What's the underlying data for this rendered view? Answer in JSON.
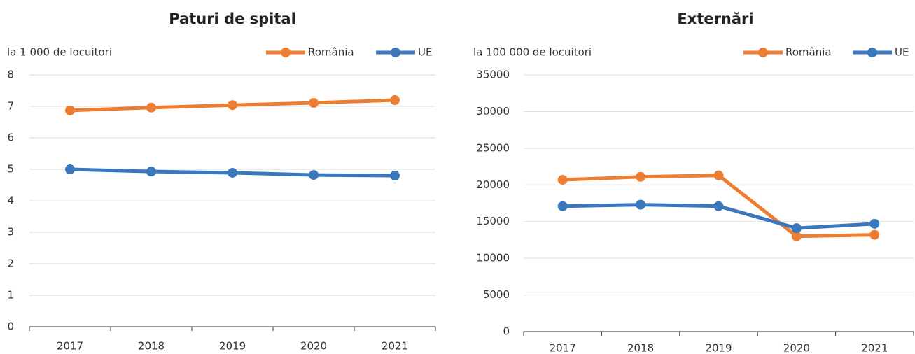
{
  "chart_data": [
    {
      "type": "line",
      "title": "Paturi de spital",
      "y_label": "la 1 000 de locuitori",
      "categories": [
        "2017",
        "2018",
        "2019",
        "2020",
        "2021"
      ],
      "series": [
        {
          "name": "România",
          "color": "#ed7d31",
          "values": [
            6.87,
            6.96,
            7.04,
            7.11,
            7.2
          ]
        },
        {
          "name": "UE",
          "color": "#3a77bd",
          "values": [
            5.0,
            4.93,
            4.89,
            4.82,
            4.8
          ]
        }
      ],
      "ylim": [
        0,
        8
      ],
      "yticks": [
        0,
        1,
        2,
        3,
        4,
        5,
        6,
        7,
        8
      ],
      "grid": true,
      "legend": "top-right"
    },
    {
      "type": "line",
      "title": "Externări",
      "y_label": "la 100 000 de locuitori",
      "categories": [
        "2017",
        "2018",
        "2019",
        "2020",
        "2021"
      ],
      "series": [
        {
          "name": "România",
          "color": "#ed7d31",
          "values": [
            20700,
            21100,
            21300,
            13000,
            13200
          ]
        },
        {
          "name": "UE",
          "color": "#3a77bd",
          "values": [
            17100,
            17300,
            17100,
            14100,
            14700
          ]
        }
      ],
      "ylim": [
        0,
        35000
      ],
      "yticks": [
        0,
        5000,
        10000,
        15000,
        20000,
        25000,
        30000,
        35000
      ],
      "grid": true,
      "legend": "top-right"
    }
  ]
}
